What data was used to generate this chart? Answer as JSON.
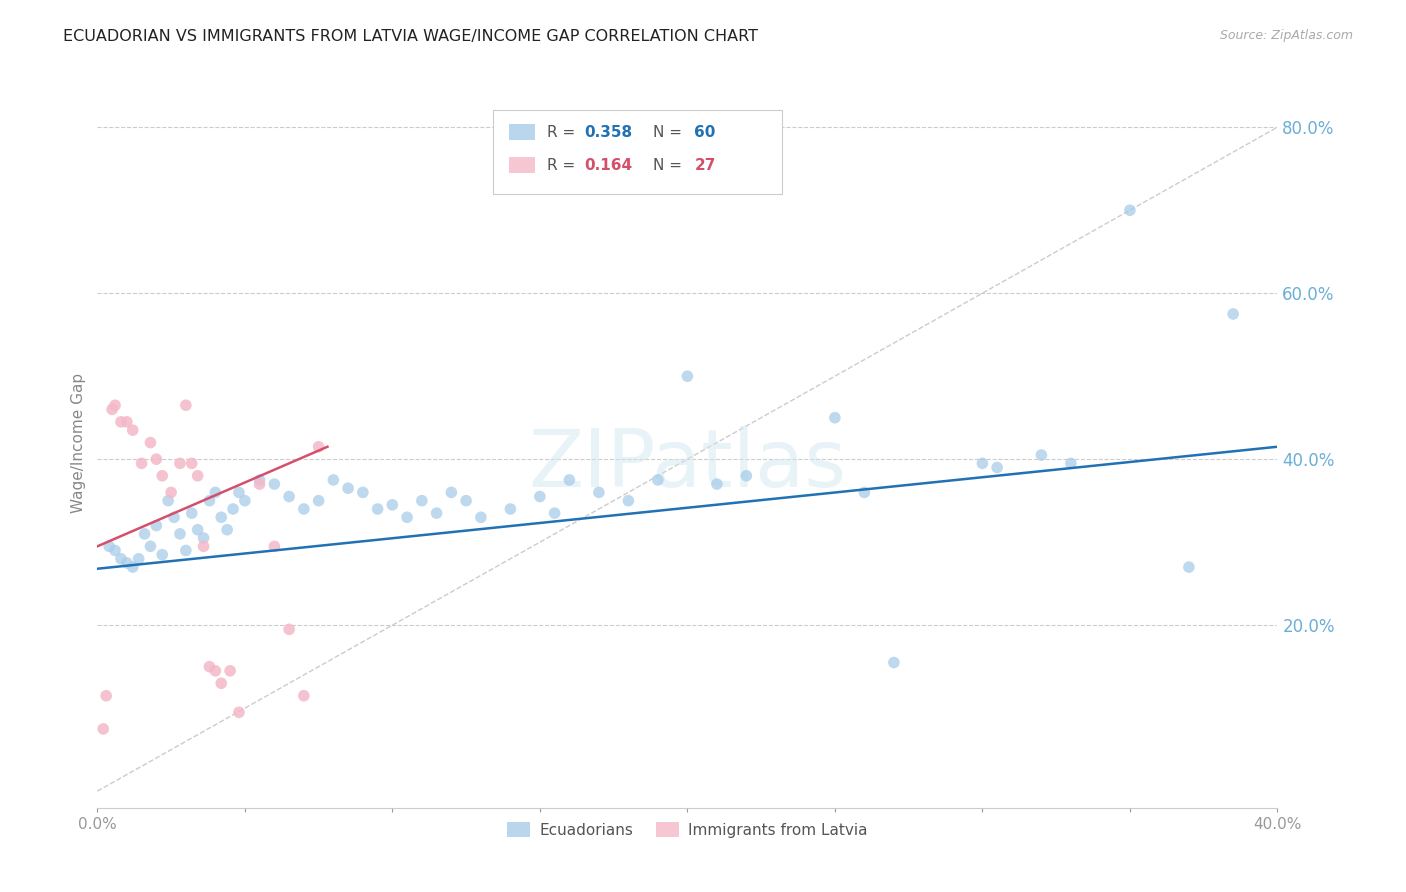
{
  "title": "ECUADORIAN VS IMMIGRANTS FROM LATVIA WAGE/INCOME GAP CORRELATION CHART",
  "source": "Source: ZipAtlas.com",
  "ylabel": "Wage/Income Gap",
  "watermark": "ZIPatlas",
  "legend_labels": [
    "Ecuadorians",
    "Immigrants from Latvia"
  ],
  "blue_color": "#a8cce8",
  "pink_color": "#f4b8c8",
  "blue_line_color": "#2171b5",
  "pink_line_color": "#d4506a",
  "diagonal_color": "#cccccc",
  "xlim": [
    0.0,
    0.4
  ],
  "ylim": [
    -0.02,
    0.86
  ],
  "yticks": [
    0.2,
    0.4,
    0.6,
    0.8
  ],
  "ytick_labels": [
    "20.0%",
    "40.0%",
    "60.0%",
    "80.0%"
  ],
  "xtick_labels": [
    "0.0%",
    "",
    "",
    "",
    "",
    "",
    "",
    "",
    "40.0%"
  ],
  "xticks": [
    0.0,
    0.05,
    0.1,
    0.15,
    0.2,
    0.25,
    0.3,
    0.35,
    0.4
  ],
  "blue_R": "0.358",
  "blue_N": "60",
  "pink_R": "0.164",
  "pink_N": "27",
  "blue_scatter_x": [
    0.004,
    0.006,
    0.008,
    0.01,
    0.012,
    0.014,
    0.016,
    0.018,
    0.02,
    0.022,
    0.024,
    0.026,
    0.028,
    0.03,
    0.032,
    0.034,
    0.036,
    0.038,
    0.04,
    0.042,
    0.044,
    0.046,
    0.048,
    0.05,
    0.055,
    0.06,
    0.065,
    0.07,
    0.075,
    0.08,
    0.085,
    0.09,
    0.095,
    0.1,
    0.105,
    0.11,
    0.115,
    0.12,
    0.125,
    0.13,
    0.14,
    0.15,
    0.155,
    0.16,
    0.17,
    0.18,
    0.19,
    0.2,
    0.21,
    0.22,
    0.25,
    0.26,
    0.27,
    0.3,
    0.305,
    0.32,
    0.33,
    0.35,
    0.37,
    0.385
  ],
  "blue_scatter_y": [
    0.295,
    0.29,
    0.28,
    0.275,
    0.27,
    0.28,
    0.31,
    0.295,
    0.32,
    0.285,
    0.35,
    0.33,
    0.31,
    0.29,
    0.335,
    0.315,
    0.305,
    0.35,
    0.36,
    0.33,
    0.315,
    0.34,
    0.36,
    0.35,
    0.375,
    0.37,
    0.355,
    0.34,
    0.35,
    0.375,
    0.365,
    0.36,
    0.34,
    0.345,
    0.33,
    0.35,
    0.335,
    0.36,
    0.35,
    0.33,
    0.34,
    0.355,
    0.335,
    0.375,
    0.36,
    0.35,
    0.375,
    0.5,
    0.37,
    0.38,
    0.45,
    0.36,
    0.155,
    0.395,
    0.39,
    0.405,
    0.395,
    0.7,
    0.27,
    0.575
  ],
  "pink_scatter_x": [
    0.002,
    0.003,
    0.005,
    0.006,
    0.008,
    0.01,
    0.012,
    0.015,
    0.018,
    0.02,
    0.022,
    0.025,
    0.028,
    0.03,
    0.032,
    0.034,
    0.036,
    0.038,
    0.04,
    0.042,
    0.045,
    0.048,
    0.055,
    0.06,
    0.065,
    0.07,
    0.075
  ],
  "pink_scatter_y": [
    0.075,
    0.115,
    0.46,
    0.465,
    0.445,
    0.445,
    0.435,
    0.395,
    0.42,
    0.4,
    0.38,
    0.36,
    0.395,
    0.465,
    0.395,
    0.38,
    0.295,
    0.15,
    0.145,
    0.13,
    0.145,
    0.095,
    0.37,
    0.295,
    0.195,
    0.115,
    0.415
  ],
  "blue_line_x": [
    0.0,
    0.4
  ],
  "blue_line_y": [
    0.268,
    0.415
  ],
  "pink_line_x": [
    0.0,
    0.078
  ],
  "pink_line_y": [
    0.295,
    0.415
  ],
  "diag_line_x": [
    0.0,
    0.4
  ],
  "diag_line_y": [
    0.0,
    0.8
  ]
}
